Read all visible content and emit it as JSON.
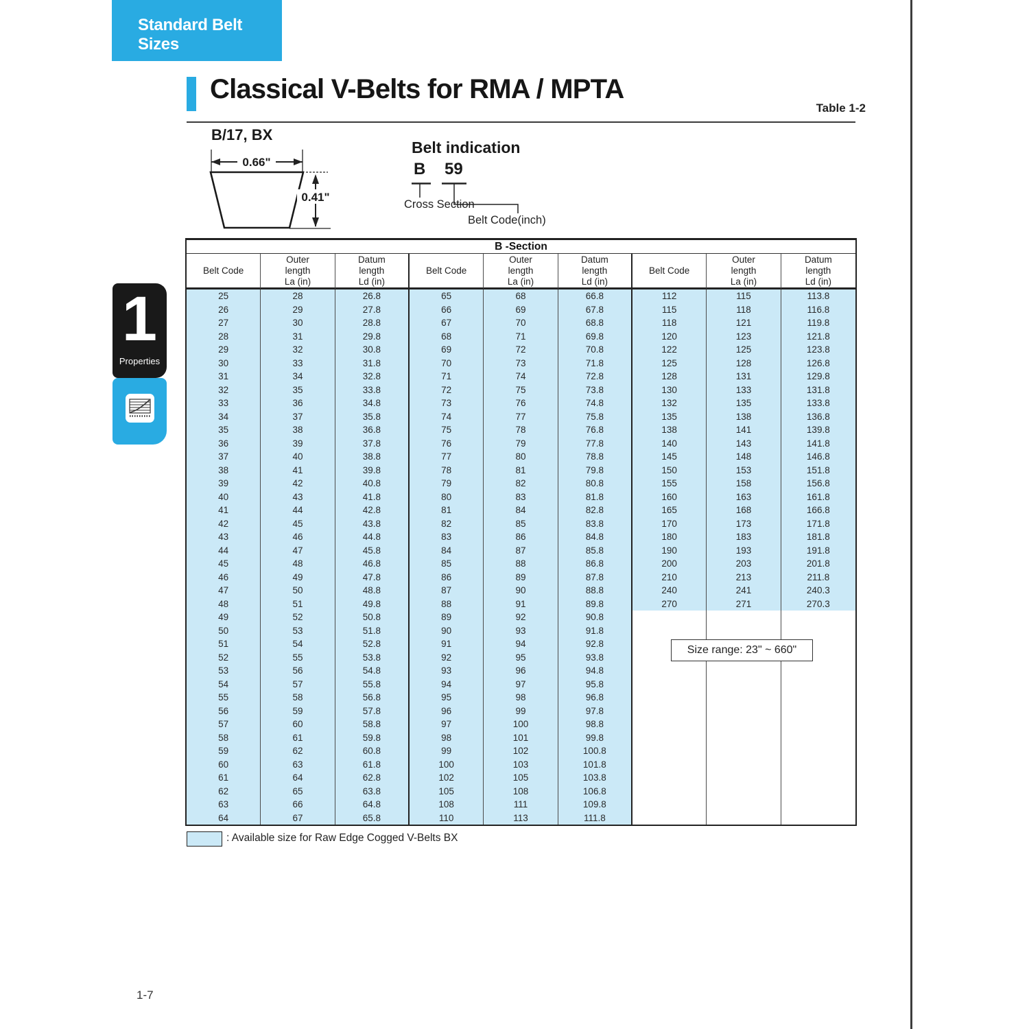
{
  "page": {
    "tab_label": "Standard Belt Sizes",
    "title": "Classical V-Belts for RMA / MPTA",
    "table_ref": "Table 1-2",
    "page_number": "1-7",
    "colors": {
      "accent_cyan": "#29ABE2",
      "highlight_blue": "#CBE9F7",
      "ink": "#222222"
    }
  },
  "sidebar": {
    "chapter_number": "1",
    "chapter_label": "Properties",
    "icon": "chart-lines-icon"
  },
  "diagram": {
    "section_label": "B/17, BX",
    "width_dim": "0.66\"",
    "height_dim": "0.41\""
  },
  "belt_indication": {
    "heading": "Belt indication",
    "cross_section_value": "B",
    "belt_code_value": "59",
    "cross_section_label": "Cross Section",
    "belt_code_label": "Belt Code(inch)"
  },
  "table": {
    "section_header": "B -Section",
    "col_headers": [
      {
        "lines": [
          "Belt Code"
        ]
      },
      {
        "lines": [
          "Outer",
          "length",
          "La (in)"
        ]
      },
      {
        "lines": [
          "Datum",
          "length",
          "Ld (in)"
        ]
      }
    ],
    "groups": [
      {
        "rows": [
          [
            "25",
            "28",
            "26.8"
          ],
          [
            "26",
            "29",
            "27.8"
          ],
          [
            "27",
            "30",
            "28.8"
          ],
          [
            "28",
            "31",
            "29.8"
          ],
          [
            "29",
            "32",
            "30.8"
          ],
          [
            "30",
            "33",
            "31.8"
          ],
          [
            "31",
            "34",
            "32.8"
          ],
          [
            "32",
            "35",
            "33.8"
          ],
          [
            "33",
            "36",
            "34.8"
          ],
          [
            "34",
            "37",
            "35.8"
          ],
          [
            "35",
            "38",
            "36.8"
          ],
          [
            "36",
            "39",
            "37.8"
          ],
          [
            "37",
            "40",
            "38.8"
          ],
          [
            "38",
            "41",
            "39.8"
          ],
          [
            "39",
            "42",
            "40.8"
          ],
          [
            "40",
            "43",
            "41.8"
          ],
          [
            "41",
            "44",
            "42.8"
          ],
          [
            "42",
            "45",
            "43.8"
          ],
          [
            "43",
            "46",
            "44.8"
          ],
          [
            "44",
            "47",
            "45.8"
          ],
          [
            "45",
            "48",
            "46.8"
          ],
          [
            "46",
            "49",
            "47.8"
          ],
          [
            "47",
            "50",
            "48.8"
          ],
          [
            "48",
            "51",
            "49.8"
          ],
          [
            "49",
            "52",
            "50.8"
          ],
          [
            "50",
            "53",
            "51.8"
          ],
          [
            "51",
            "54",
            "52.8"
          ],
          [
            "52",
            "55",
            "53.8"
          ],
          [
            "53",
            "56",
            "54.8"
          ],
          [
            "54",
            "57",
            "55.8"
          ],
          [
            "55",
            "58",
            "56.8"
          ],
          [
            "56",
            "59",
            "57.8"
          ],
          [
            "57",
            "60",
            "58.8"
          ],
          [
            "58",
            "61",
            "59.8"
          ],
          [
            "59",
            "62",
            "60.8"
          ],
          [
            "60",
            "63",
            "61.8"
          ],
          [
            "61",
            "64",
            "62.8"
          ],
          [
            "62",
            "65",
            "63.8"
          ],
          [
            "63",
            "66",
            "64.8"
          ],
          [
            "64",
            "67",
            "65.8"
          ]
        ]
      },
      {
        "rows": [
          [
            "65",
            "68",
            "66.8"
          ],
          [
            "66",
            "69",
            "67.8"
          ],
          [
            "67",
            "70",
            "68.8"
          ],
          [
            "68",
            "71",
            "69.8"
          ],
          [
            "69",
            "72",
            "70.8"
          ],
          [
            "70",
            "73",
            "71.8"
          ],
          [
            "71",
            "74",
            "72.8"
          ],
          [
            "72",
            "75",
            "73.8"
          ],
          [
            "73",
            "76",
            "74.8"
          ],
          [
            "74",
            "77",
            "75.8"
          ],
          [
            "75",
            "78",
            "76.8"
          ],
          [
            "76",
            "79",
            "77.8"
          ],
          [
            "77",
            "80",
            "78.8"
          ],
          [
            "78",
            "81",
            "79.8"
          ],
          [
            "79",
            "82",
            "80.8"
          ],
          [
            "80",
            "83",
            "81.8"
          ],
          [
            "81",
            "84",
            "82.8"
          ],
          [
            "82",
            "85",
            "83.8"
          ],
          [
            "83",
            "86",
            "84.8"
          ],
          [
            "84",
            "87",
            "85.8"
          ],
          [
            "85",
            "88",
            "86.8"
          ],
          [
            "86",
            "89",
            "87.8"
          ],
          [
            "87",
            "90",
            "88.8"
          ],
          [
            "88",
            "91",
            "89.8"
          ],
          [
            "89",
            "92",
            "90.8"
          ],
          [
            "90",
            "93",
            "91.8"
          ],
          [
            "91",
            "94",
            "92.8"
          ],
          [
            "92",
            "95",
            "93.8"
          ],
          [
            "93",
            "96",
            "94.8"
          ],
          [
            "94",
            "97",
            "95.8"
          ],
          [
            "95",
            "98",
            "96.8"
          ],
          [
            "96",
            "99",
            "97.8"
          ],
          [
            "97",
            "100",
            "98.8"
          ],
          [
            "98",
            "101",
            "99.8"
          ],
          [
            "99",
            "102",
            "100.8"
          ],
          [
            "100",
            "103",
            "101.8"
          ],
          [
            "102",
            "105",
            "103.8"
          ],
          [
            "105",
            "108",
            "106.8"
          ],
          [
            "108",
            "111",
            "109.8"
          ],
          [
            "110",
            "113",
            "111.8"
          ]
        ]
      },
      {
        "rows": [
          [
            "112",
            "115",
            "113.8"
          ],
          [
            "115",
            "118",
            "116.8"
          ],
          [
            "118",
            "121",
            "119.8"
          ],
          [
            "120",
            "123",
            "121.8"
          ],
          [
            "122",
            "125",
            "123.8"
          ],
          [
            "125",
            "128",
            "126.8"
          ],
          [
            "128",
            "131",
            "129.8"
          ],
          [
            "130",
            "133",
            "131.8"
          ],
          [
            "132",
            "135",
            "133.8"
          ],
          [
            "135",
            "138",
            "136.8"
          ],
          [
            "138",
            "141",
            "139.8"
          ],
          [
            "140",
            "143",
            "141.8"
          ],
          [
            "145",
            "148",
            "146.8"
          ],
          [
            "150",
            "153",
            "151.8"
          ],
          [
            "155",
            "158",
            "156.8"
          ],
          [
            "160",
            "163",
            "161.8"
          ],
          [
            "165",
            "168",
            "166.8"
          ],
          [
            "170",
            "173",
            "171.8"
          ],
          [
            "180",
            "183",
            "181.8"
          ],
          [
            "190",
            "193",
            "191.8"
          ],
          [
            "200",
            "203",
            "201.8"
          ],
          [
            "210",
            "213",
            "211.8"
          ],
          [
            "240",
            "241",
            "240.3"
          ],
          [
            "270",
            "271",
            "270.3"
          ]
        ]
      }
    ],
    "size_range_note": "Size range: 23\" ~ 660\"",
    "legend": ": Available size for Raw Edge Cogged V-Belts BX"
  }
}
